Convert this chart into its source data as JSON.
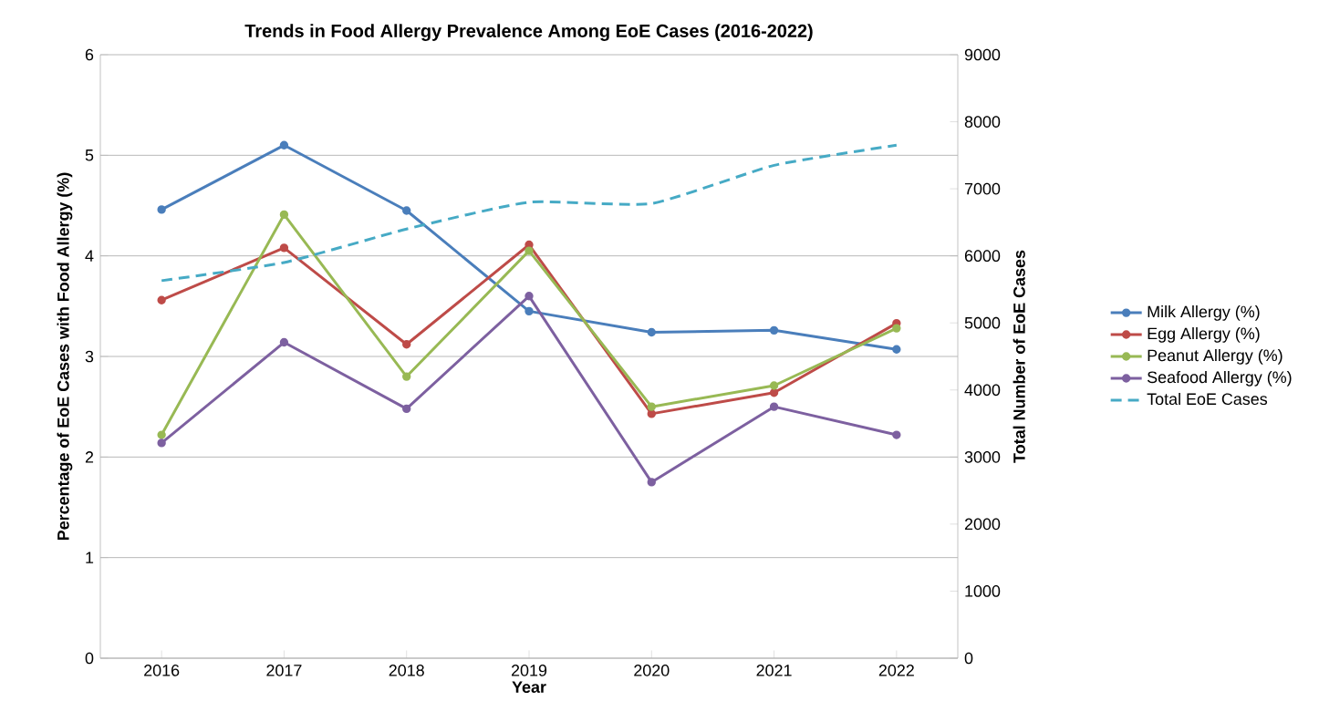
{
  "chart_data": {
    "type": "line",
    "title": "Trends in Food Allergy Prevalence Among EoE Cases (2016-2022)",
    "xlabel": "Year",
    "ylabel": "Percentage of EoE Cases with Food Allergy (%)",
    "y2label": "Total Number of EoE Cases",
    "categories": [
      "2016",
      "2017",
      "2018",
      "2019",
      "2020",
      "2021",
      "2022"
    ],
    "series": [
      {
        "name": "Milk Allergy (%)",
        "color": "#4a7ebb",
        "marker": "circle",
        "line_style": "solid",
        "values": [
          4.46,
          5.1,
          4.45,
          3.45,
          3.24,
          3.26,
          3.07
        ]
      },
      {
        "name": "Egg Allergy (%)",
        "color": "#be4b48",
        "marker": "circle",
        "line_style": "solid",
        "values": [
          3.56,
          4.08,
          3.12,
          4.11,
          2.43,
          2.64,
          3.33
        ]
      },
      {
        "name": "Peanut Allergy (%)",
        "color": "#98b954",
        "marker": "circle",
        "line_style": "solid",
        "values": [
          2.22,
          4.41,
          2.8,
          4.05,
          2.5,
          2.71,
          3.28
        ]
      },
      {
        "name": "Seafood Allergy (%)",
        "color": "#7d60a0",
        "marker": "circle",
        "line_style": "solid",
        "values": [
          2.14,
          3.14,
          2.48,
          3.6,
          1.75,
          2.5,
          2.22
        ]
      },
      {
        "name": "Total EoE Cases",
        "color": "#46aac5",
        "marker": "none",
        "line_style": "dashed",
        "axis": "y2",
        "values": [
          5630,
          5900,
          6400,
          6800,
          6780,
          7350,
          7650
        ]
      }
    ],
    "ylim": [
      0,
      6
    ],
    "yticks": [
      0,
      1,
      2,
      3,
      4,
      5,
      6
    ],
    "y2lim": [
      0,
      9000
    ],
    "y2ticks": [
      0,
      1000,
      2000,
      3000,
      4000,
      5000,
      6000,
      7000,
      8000,
      9000
    ],
    "grid": "y",
    "legend": "right"
  }
}
